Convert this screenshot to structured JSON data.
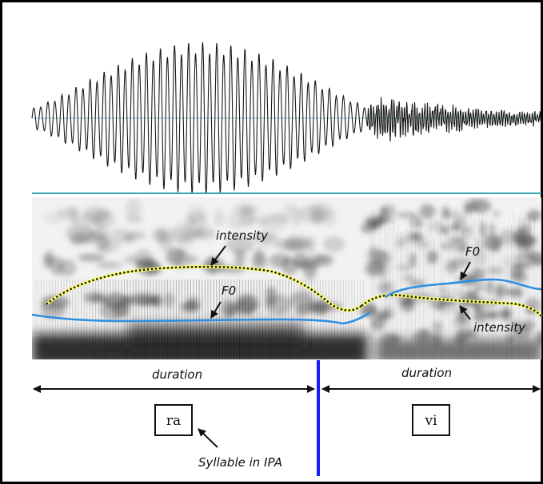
{
  "labels": {
    "intensity_ra": "intensity",
    "f0_ra": "F0",
    "f0_vi": "F0",
    "intensity_vi": "intensity",
    "duration_ra": "duration",
    "duration_vi": "duration",
    "syllable_ra": "ra",
    "syllable_vi": "vi",
    "syllable_note": "Syllable in IPA"
  },
  "colors": {
    "border": "#000000",
    "waveform": "#1a1a1a",
    "waveform_baseline": "#7fd3d8",
    "separator": "#3aa7b5",
    "f0_contour": "#2f8fe0",
    "intensity_contour": "#1a1a1a",
    "intensity_glow": "#ffff66",
    "boundary_line": "#1a1aff"
  }
}
